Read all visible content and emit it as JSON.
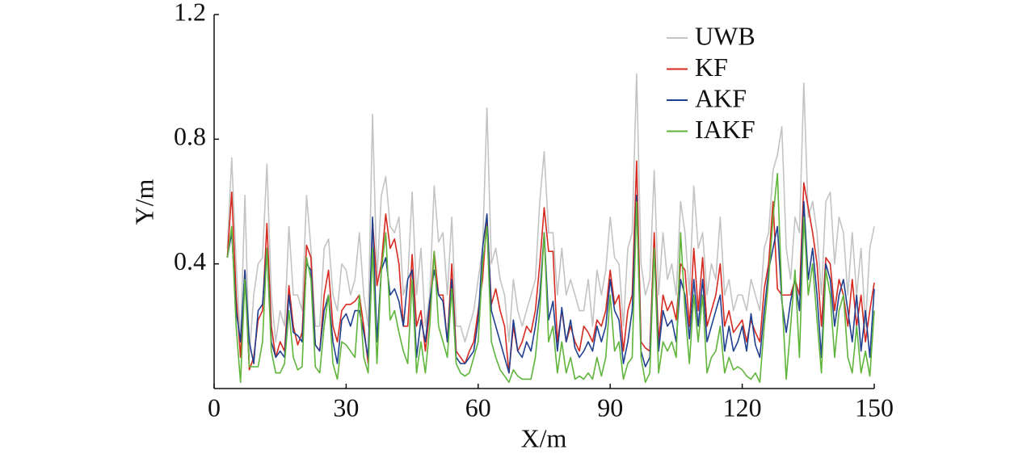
{
  "chart_data": {
    "type": "line",
    "x": [
      3,
      4,
      5,
      6,
      7,
      8,
      9,
      10,
      11,
      12,
      13,
      14,
      15,
      16,
      17,
      18,
      19,
      20,
      21,
      22,
      23,
      24,
      25,
      26,
      27,
      28,
      29,
      30,
      31,
      32,
      33,
      34,
      35,
      36,
      37,
      38,
      39,
      40,
      41,
      42,
      43,
      44,
      45,
      46,
      47,
      48,
      49,
      50,
      51,
      52,
      53,
      54,
      55,
      56,
      57,
      58,
      59,
      60,
      61,
      62,
      63,
      64,
      65,
      66,
      67,
      68,
      69,
      70,
      71,
      72,
      73,
      74,
      75,
      76,
      77,
      78,
      79,
      80,
      81,
      82,
      83,
      84,
      85,
      86,
      87,
      88,
      89,
      90,
      91,
      92,
      93,
      94,
      95,
      96,
      97,
      98,
      99,
      100,
      101,
      102,
      103,
      104,
      105,
      106,
      107,
      108,
      109,
      110,
      111,
      112,
      113,
      114,
      115,
      116,
      117,
      118,
      119,
      120,
      121,
      122,
      123,
      124,
      125,
      126,
      127,
      128,
      129,
      130,
      131,
      132,
      133,
      134,
      135,
      136,
      137,
      138,
      139,
      140,
      141,
      142,
      143,
      144,
      145,
      146,
      147,
      148,
      149,
      150
    ],
    "series": [
      {
        "name": "UWB",
        "color": "#c3c3c3",
        "values": [
          0.45,
          0.74,
          0.4,
          0.15,
          0.62,
          0.1,
          0.3,
          0.4,
          0.42,
          0.72,
          0.3,
          0.15,
          0.25,
          0.2,
          0.52,
          0.3,
          0.3,
          0.25,
          0.62,
          0.45,
          0.2,
          0.2,
          0.45,
          0.48,
          0.3,
          0.25,
          0.4,
          0.38,
          0.3,
          0.35,
          0.5,
          0.3,
          0.2,
          0.88,
          0.35,
          0.62,
          0.68,
          0.52,
          0.5,
          0.55,
          0.3,
          0.35,
          0.63,
          0.3,
          0.45,
          0.2,
          0.3,
          0.65,
          0.47,
          0.5,
          0.3,
          0.55,
          0.2,
          0.2,
          0.15,
          0.2,
          0.25,
          0.35,
          0.45,
          0.9,
          0.4,
          0.45,
          0.35,
          0.3,
          0.15,
          0.35,
          0.25,
          0.2,
          0.25,
          0.3,
          0.35,
          0.6,
          0.76,
          0.5,
          0.5,
          0.3,
          0.45,
          0.3,
          0.35,
          0.3,
          0.25,
          0.25,
          0.35,
          0.2,
          0.38,
          0.3,
          0.38,
          0.55,
          0.42,
          0.4,
          0.2,
          0.45,
          0.5,
          1.01,
          0.4,
          0.3,
          0.35,
          0.7,
          0.3,
          0.5,
          0.35,
          0.4,
          0.3,
          0.6,
          0.5,
          0.3,
          0.65,
          0.45,
          0.5,
          0.3,
          0.4,
          0.35,
          0.55,
          0.3,
          0.35,
          0.25,
          0.3,
          0.3,
          0.25,
          0.35,
          0.3,
          0.25,
          0.45,
          0.5,
          0.7,
          0.75,
          0.84,
          0.45,
          0.35,
          0.55,
          0.5,
          0.98,
          0.55,
          0.6,
          0.5,
          0.3,
          0.6,
          0.63,
          0.4,
          0.55,
          0.5,
          0.3,
          0.5,
          0.3,
          0.45,
          0.2,
          0.45,
          0.52
        ]
      },
      {
        "name": "KF",
        "color": "#d62a20",
        "values": [
          0.42,
          0.63,
          0.3,
          0.1,
          0.38,
          0.06,
          0.1,
          0.22,
          0.25,
          0.53,
          0.2,
          0.1,
          0.15,
          0.12,
          0.33,
          0.2,
          0.14,
          0.18,
          0.46,
          0.42,
          0.14,
          0.12,
          0.3,
          0.38,
          0.2,
          0.15,
          0.25,
          0.27,
          0.27,
          0.28,
          0.3,
          0.2,
          0.08,
          0.54,
          0.33,
          0.4,
          0.56,
          0.45,
          0.48,
          0.4,
          0.2,
          0.2,
          0.43,
          0.2,
          0.25,
          0.12,
          0.25,
          0.44,
          0.3,
          0.3,
          0.15,
          0.4,
          0.12,
          0.1,
          0.08,
          0.12,
          0.15,
          0.25,
          0.35,
          0.55,
          0.27,
          0.32,
          0.25,
          0.2,
          0.05,
          0.2,
          0.12,
          0.15,
          0.2,
          0.18,
          0.25,
          0.4,
          0.58,
          0.44,
          0.44,
          0.15,
          0.25,
          0.15,
          0.2,
          0.15,
          0.12,
          0.2,
          0.18,
          0.15,
          0.22,
          0.2,
          0.25,
          0.38,
          0.27,
          0.3,
          0.12,
          0.25,
          0.3,
          0.73,
          0.15,
          0.13,
          0.12,
          0.5,
          0.15,
          0.3,
          0.25,
          0.28,
          0.22,
          0.4,
          0.38,
          0.2,
          0.45,
          0.25,
          0.42,
          0.2,
          0.25,
          0.3,
          0.4,
          0.2,
          0.25,
          0.18,
          0.2,
          0.22,
          0.15,
          0.22,
          0.18,
          0.15,
          0.32,
          0.4,
          0.6,
          0.32,
          0.3,
          0.3,
          0.3,
          0.35,
          0.3,
          0.66,
          0.58,
          0.5,
          0.4,
          0.2,
          0.42,
          0.4,
          0.25,
          0.35,
          0.3,
          0.2,
          0.35,
          0.2,
          0.3,
          0.15,
          0.25,
          0.34
        ]
      },
      {
        "name": "AKF",
        "color": "#1f3f8f",
        "values": [
          0.42,
          0.5,
          0.25,
          0.15,
          0.38,
          0.15,
          0.08,
          0.25,
          0.27,
          0.45,
          0.15,
          0.1,
          0.12,
          0.1,
          0.3,
          0.18,
          0.17,
          0.15,
          0.4,
          0.38,
          0.14,
          0.12,
          0.25,
          0.3,
          0.15,
          0.08,
          0.22,
          0.24,
          0.2,
          0.25,
          0.25,
          0.18,
          0.1,
          0.55,
          0.15,
          0.38,
          0.42,
          0.3,
          0.32,
          0.28,
          0.2,
          0.35,
          0.38,
          0.1,
          0.22,
          0.15,
          0.28,
          0.38,
          0.3,
          0.28,
          0.15,
          0.35,
          0.1,
          0.08,
          0.08,
          0.1,
          0.12,
          0.22,
          0.45,
          0.56,
          0.25,
          0.2,
          0.15,
          0.1,
          0.05,
          0.22,
          0.12,
          0.1,
          0.15,
          0.12,
          0.2,
          0.3,
          0.5,
          0.22,
          0.28,
          0.12,
          0.26,
          0.15,
          0.22,
          0.13,
          0.1,
          0.12,
          0.15,
          0.12,
          0.2,
          0.15,
          0.2,
          0.35,
          0.25,
          0.22,
          0.08,
          0.15,
          0.25,
          0.62,
          0.12,
          0.07,
          0.1,
          0.45,
          0.12,
          0.25,
          0.2,
          0.22,
          0.15,
          0.35,
          0.3,
          0.16,
          0.35,
          0.2,
          0.35,
          0.15,
          0.2,
          0.25,
          0.3,
          0.12,
          0.2,
          0.12,
          0.15,
          0.2,
          0.12,
          0.24,
          0.14,
          0.1,
          0.25,
          0.38,
          0.45,
          0.52,
          0.28,
          0.18,
          0.28,
          0.35,
          0.25,
          0.6,
          0.35,
          0.45,
          0.3,
          0.1,
          0.4,
          0.35,
          0.2,
          0.3,
          0.35,
          0.25,
          0.15,
          0.3,
          0.12,
          0.25,
          0.1,
          0.32
        ]
      },
      {
        "name": "IAKF",
        "color": "#5fb43a",
        "values": [
          0.42,
          0.52,
          0.2,
          0.02,
          0.35,
          0.07,
          0.07,
          0.07,
          0.15,
          0.45,
          0.12,
          0.05,
          0.05,
          0.08,
          0.25,
          0.1,
          0.06,
          0.07,
          0.42,
          0.35,
          0.07,
          0.05,
          0.2,
          0.3,
          0.08,
          0.03,
          0.15,
          0.14,
          0.12,
          0.1,
          0.3,
          0.1,
          0.05,
          0.45,
          0.08,
          0.38,
          0.5,
          0.22,
          0.25,
          0.18,
          0.12,
          0.08,
          0.35,
          0.05,
          0.15,
          0.05,
          0.2,
          0.44,
          0.2,
          0.15,
          0.1,
          0.32,
          0.08,
          0.05,
          0.04,
          0.05,
          0.1,
          0.15,
          0.4,
          0.52,
          0.15,
          0.1,
          0.06,
          0.04,
          0.02,
          0.06,
          0.04,
          0.03,
          0.03,
          0.03,
          0.1,
          0.25,
          0.5,
          0.15,
          0.2,
          0.05,
          0.15,
          0.05,
          0.1,
          0.03,
          0.04,
          0.03,
          0.05,
          0.03,
          0.1,
          0.04,
          0.1,
          0.3,
          0.12,
          0.15,
          0.03,
          0.08,
          0.1,
          0.6,
          0.1,
          0.02,
          0.05,
          0.45,
          0.05,
          0.15,
          0.12,
          0.15,
          0.1,
          0.5,
          0.25,
          0.08,
          0.3,
          0.15,
          0.3,
          0.05,
          0.1,
          0.12,
          0.2,
          0.05,
          0.1,
          0.06,
          0.07,
          0.06,
          0.04,
          0.03,
          0.05,
          0.02,
          0.2,
          0.35,
          0.55,
          0.69,
          0.3,
          0.03,
          0.2,
          0.38,
          0.1,
          0.55,
          0.3,
          0.4,
          0.22,
          0.05,
          0.38,
          0.3,
          0.1,
          0.25,
          0.3,
          0.1,
          0.05,
          0.2,
          0.05,
          0.12,
          0.04,
          0.25
        ]
      }
    ],
    "xlabel": "X/m",
    "ylabel": "Y/m",
    "xlim": [
      0,
      150
    ],
    "xticks": [
      0,
      30,
      60,
      90,
      120,
      150
    ],
    "ylim": [
      0,
      1.2
    ],
    "yticks": [
      0.4,
      0.8,
      1.2
    ],
    "legend": "upper right"
  }
}
